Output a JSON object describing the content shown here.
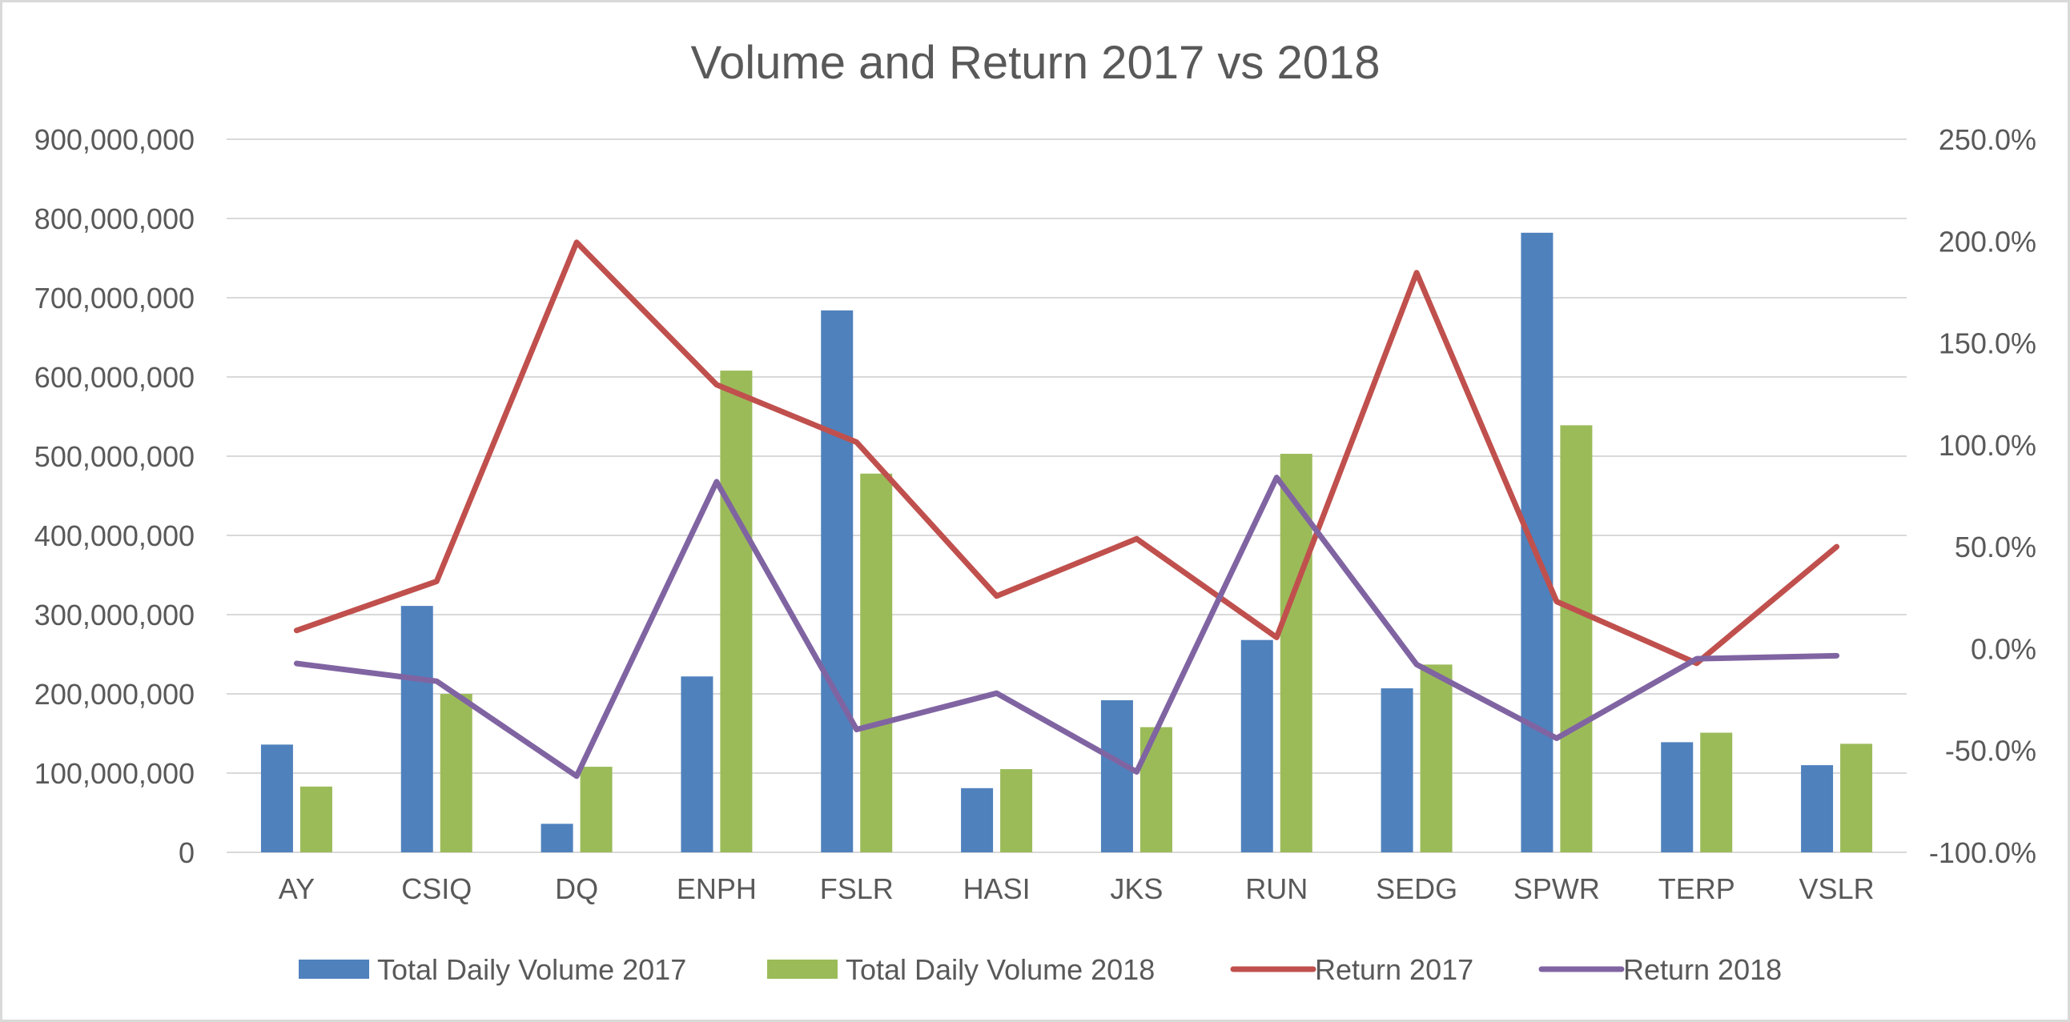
{
  "chart_data": {
    "type": "bar",
    "title": "Volume and Return 2017 vs 2018",
    "categories": [
      "AY",
      "CSIQ",
      "DQ",
      "ENPH",
      "FSLR",
      "HASI",
      "JKS",
      "RUN",
      "SEDG",
      "SPWR",
      "TERP",
      "VSLR"
    ],
    "series": [
      {
        "name": "Total Daily Volume 2017",
        "type": "bar",
        "axis": "left",
        "color": "#4f81bd",
        "values": [
          136000000,
          311000000,
          36000000,
          222000000,
          684000000,
          81000000,
          192000000,
          268000000,
          207000000,
          782000000,
          139000000,
          110000000
        ]
      },
      {
        "name": "Total Daily Volume 2018",
        "type": "bar",
        "axis": "left",
        "color": "#9bbb59",
        "values": [
          83000000,
          200000000,
          108000000,
          608000000,
          478000000,
          105000000,
          158000000,
          503000000,
          237000000,
          539000000,
          151000000,
          137000000
        ]
      },
      {
        "name": "Return 2017",
        "type": "line",
        "axis": "right",
        "color": "#c0504d",
        "values": [
          8.9,
          33.0,
          199.4,
          129.5,
          101.3,
          25.8,
          53.9,
          5.5,
          184.5,
          23.1,
          -7.2,
          50.0
        ]
      },
      {
        "name": "Return 2018",
        "type": "line",
        "axis": "right",
        "color": "#8064a2",
        "values": [
          -7.3,
          -16.0,
          -62.6,
          81.9,
          -39.7,
          -21.9,
          -60.5,
          84.0,
          -7.8,
          -44.0,
          -5.0,
          -3.5
        ]
      }
    ],
    "y_left": {
      "min": 0,
      "max": 900000000,
      "step": 100000000,
      "tick_labels": [
        "0",
        "100,000,000",
        "200,000,000",
        "300,000,000",
        "400,000,000",
        "500,000,000",
        "600,000,000",
        "700,000,000",
        "800,000,000",
        "900,000,000"
      ]
    },
    "y_right": {
      "min": -100,
      "max": 250,
      "step": 50,
      "unit": "%",
      "tick_labels": [
        "-100.0%",
        "-50.0%",
        "0.0%",
        "50.0%",
        "100.0%",
        "150.0%",
        "200.0%",
        "250.0%"
      ]
    },
    "xlabel": "",
    "ylabel": "",
    "grid": true,
    "legend": "bottom"
  }
}
